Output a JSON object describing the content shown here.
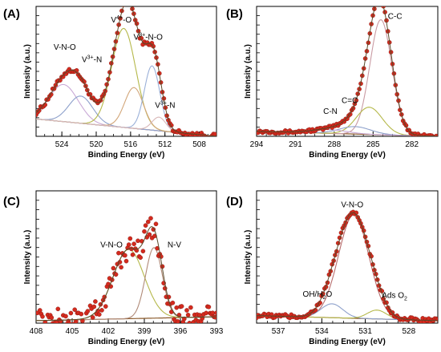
{
  "chart_data": [
    {
      "panel": "(A)",
      "type": "scatter",
      "xlabel": "Binding Energy (eV)",
      "ylabel": "Intensity (a.u.)",
      "x_reversed": true,
      "xlim": [
        527,
        506
      ],
      "ylim": [
        0,
        1.05
      ],
      "xticks": [
        524,
        520,
        516,
        512,
        508
      ],
      "annotations": [
        {
          "label": "V-N-O",
          "x": 523.1,
          "y": 0.7
        },
        {
          "label": "V",
          "sup": "3+",
          "suffix": "-N",
          "x": 520.5,
          "y": 0.6
        },
        {
          "label": "V",
          "sup": "4+",
          "suffix": "-O",
          "x": 516.8,
          "y": 0.92
        },
        {
          "label": "V",
          "sup": "3+",
          "suffix": "-N-O",
          "x": 513.4,
          "y": 0.78
        },
        {
          "label": "V",
          "sup": "3+",
          "suffix": "-N",
          "x": 511.8,
          "y": 0.23
        }
      ],
      "background": {
        "x1": 527,
        "y1": 0.14,
        "x2": 506,
        "y2": 0.0
      },
      "components": [
        {
          "center": 523.8,
          "height": 0.3,
          "width": 1.7,
          "color": "#c9a9d6"
        },
        {
          "center": 521.8,
          "height": 0.22,
          "width": 1.4,
          "color": "#8da0cb"
        },
        {
          "center": 516.8,
          "height": 0.8,
          "width": 1.4,
          "color": "#b5b84a"
        },
        {
          "center": 515.6,
          "height": 0.33,
          "width": 1.1,
          "color": "#d2a679"
        },
        {
          "center": 513.5,
          "height": 0.52,
          "width": 0.9,
          "color": "#9ab0d8"
        },
        {
          "center": 512.7,
          "height": 0.11,
          "width": 0.8,
          "color": "#d8b7b7"
        }
      ]
    },
    {
      "panel": "(B)",
      "type": "scatter",
      "xlabel": "Binding Energy (eV)",
      "ylabel": "Intensity (a.u.)",
      "x_reversed": true,
      "xlim": [
        294,
        280
      ],
      "ylim": [
        0,
        1.05
      ],
      "xticks": [
        294,
        291,
        288,
        285,
        282
      ],
      "annotations": [
        {
          "label": "C-C",
          "x": 283.3,
          "y": 0.95
        },
        {
          "label": "C=C",
          "x": 286.8,
          "y": 0.27
        },
        {
          "label": "C-N",
          "x": 288.3,
          "y": 0.18
        }
      ],
      "background": {
        "x1": 294,
        "y1": 0.04,
        "x2": 280,
        "y2": 0.0
      },
      "components": [
        {
          "center": 284.4,
          "height": 0.93,
          "width": 0.85,
          "color": "#c99ba3"
        },
        {
          "center": 285.3,
          "height": 0.22,
          "width": 1.0,
          "color": "#b5b84a"
        },
        {
          "center": 286.4,
          "height": 0.06,
          "width": 1.2,
          "color": "#8da0cb"
        },
        {
          "center": 288.4,
          "height": 0.03,
          "width": 1.4,
          "color": "#c9a9d6"
        }
      ]
    },
    {
      "panel": "(C)",
      "type": "scatter",
      "xlabel": "Binding Energy (eV)",
      "ylabel": "Intensity (a.u.)",
      "x_reversed": true,
      "xlim": [
        408,
        393
      ],
      "ylim": [
        0,
        1.05
      ],
      "xticks": [
        408,
        405,
        402,
        399,
        396,
        393
      ],
      "annotations": [
        {
          "label": "V-N-O",
          "x": 401.2,
          "y": 0.6
        },
        {
          "label": "N-V",
          "x": 396.9,
          "y": 0.6
        }
      ],
      "background": {
        "x1": 408,
        "y1": 0.02,
        "x2": 393,
        "y2": 0.05
      },
      "components": [
        {
          "center": 400.3,
          "height": 0.55,
          "width": 1.3,
          "color": "#b5b84a"
        },
        {
          "center": 398.2,
          "height": 0.56,
          "width": 0.7,
          "color": "#b08a78"
        }
      ]
    },
    {
      "panel": "(D)",
      "type": "scatter",
      "xlabel": "Binding Energy (eV)",
      "ylabel": "Intensity (a.u.)",
      "x_reversed": true,
      "xlim": [
        538.5,
        526
      ],
      "ylim": [
        0,
        1.05
      ],
      "xticks": [
        537,
        534,
        531,
        528
      ],
      "annotations": [
        {
          "label": "V-N-O",
          "x": 531.9,
          "y": 0.92
        },
        {
          "label": "OH/H",
          "sub": "2",
          "suffix": "O",
          "x": 534.3,
          "y": 0.21
        },
        {
          "label": "Ads O",
          "sub": "2",
          "suffix": "",
          "x": 529.2,
          "y": 0.2
        }
      ],
      "background": {
        "x1": 538.5,
        "y1": 0.06,
        "x2": 526,
        "y2": 0.02
      },
      "components": [
        {
          "center": 531.8,
          "height": 0.82,
          "width": 1.05,
          "color": "#b86d6d"
        },
        {
          "center": 533.3,
          "height": 0.11,
          "width": 0.75,
          "color": "#8da0cb"
        },
        {
          "center": 530.2,
          "height": 0.07,
          "width": 0.65,
          "color": "#b5b84a"
        }
      ]
    }
  ]
}
